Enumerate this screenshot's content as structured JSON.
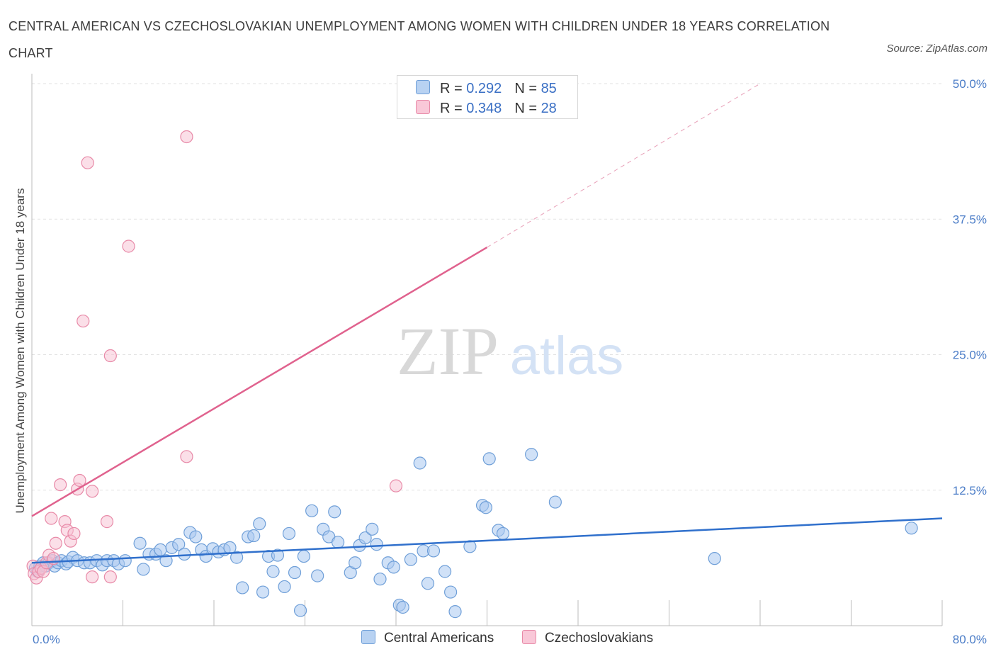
{
  "title": "CENTRAL AMERICAN VS CZECHOSLOVAKIAN UNEMPLOYMENT AMONG WOMEN WITH CHILDREN UNDER 18 YEARS CORRELATION CHART",
  "source": "Source: ZipAtlas.com",
  "watermark": {
    "zip": "ZIP",
    "atlas": "atlas"
  },
  "legend": {
    "r_label": "R =",
    "n_label": "N =",
    "series1": {
      "r": "0.292",
      "n": "85"
    },
    "series2": {
      "r": "0.348",
      "n": "28"
    }
  },
  "colors": {
    "blue_fill": "#aac8f0",
    "blue_stroke": "#6f9fd8",
    "blue_line": "#3070cc",
    "pink_fill": "#f8c0d2",
    "pink_stroke": "#e88aa8",
    "pink_line": "#e0628e",
    "axis_text": "#4a7cc7"
  },
  "chart_data": {
    "type": "scatter",
    "title": "CENTRAL AMERICAN VS CZECHOSLOVAKIAN UNEMPLOYMENT AMONG WOMEN WITH CHILDREN UNDER 18 YEARS CORRELATION CHART",
    "xlabel": "",
    "ylabel": "Unemployment Among Women with Children Under 18 years",
    "xlim": [
      0,
      80
    ],
    "ylim": [
      0,
      50
    ],
    "x_tick_labels": [
      "0.0%",
      "80.0%"
    ],
    "y_ticks": [
      12.5,
      25.0,
      37.5,
      50.0
    ],
    "y_tick_labels": [
      "12.5%",
      "25.0%",
      "37.5%",
      "50.0%"
    ],
    "grid": true,
    "series": [
      {
        "name": "Central Americans",
        "color": "#aac8f0",
        "trend": {
          "x": [
            0,
            80
          ],
          "y": [
            5.8,
            9.9
          ]
        },
        "points": [
          [
            0.3,
            5.3
          ],
          [
            0.5,
            5.0
          ],
          [
            0.7,
            5.5
          ],
          [
            1.0,
            5.8
          ],
          [
            1.2,
            5.5
          ],
          [
            1.5,
            5.8
          ],
          [
            1.8,
            6.0
          ],
          [
            2.0,
            5.5
          ],
          [
            2.3,
            5.8
          ],
          [
            2.6,
            6.0
          ],
          [
            3.0,
            5.7
          ],
          [
            3.2,
            5.9
          ],
          [
            3.6,
            6.3
          ],
          [
            4.0,
            6.0
          ],
          [
            4.6,
            5.8
          ],
          [
            5.1,
            5.8
          ],
          [
            5.7,
            6.0
          ],
          [
            6.2,
            5.6
          ],
          [
            6.6,
            6.0
          ],
          [
            7.2,
            6.0
          ],
          [
            7.6,
            5.7
          ],
          [
            8.2,
            6.0
          ],
          [
            9.5,
            7.6
          ],
          [
            9.8,
            5.2
          ],
          [
            10.3,
            6.6
          ],
          [
            10.9,
            6.6
          ],
          [
            11.3,
            7.0
          ],
          [
            11.8,
            6.0
          ],
          [
            12.3,
            7.2
          ],
          [
            12.9,
            7.5
          ],
          [
            13.4,
            6.6
          ],
          [
            13.9,
            8.6
          ],
          [
            14.4,
            8.2
          ],
          [
            14.9,
            7.0
          ],
          [
            15.3,
            6.4
          ],
          [
            15.9,
            7.1
          ],
          [
            16.4,
            6.8
          ],
          [
            16.9,
            7.0
          ],
          [
            17.4,
            7.2
          ],
          [
            18.0,
            6.3
          ],
          [
            18.5,
            3.5
          ],
          [
            19.0,
            8.2
          ],
          [
            19.5,
            8.3
          ],
          [
            20.0,
            9.4
          ],
          [
            20.3,
            3.1
          ],
          [
            20.8,
            6.4
          ],
          [
            21.2,
            5.0
          ],
          [
            21.6,
            6.5
          ],
          [
            22.2,
            3.6
          ],
          [
            22.6,
            8.5
          ],
          [
            23.1,
            4.9
          ],
          [
            23.6,
            1.4
          ],
          [
            23.9,
            6.4
          ],
          [
            24.6,
            10.6
          ],
          [
            25.1,
            4.6
          ],
          [
            25.6,
            8.9
          ],
          [
            26.1,
            8.2
          ],
          [
            26.6,
            10.5
          ],
          [
            26.9,
            7.7
          ],
          [
            28.0,
            4.9
          ],
          [
            28.4,
            5.8
          ],
          [
            28.8,
            7.4
          ],
          [
            29.3,
            8.1
          ],
          [
            29.9,
            8.9
          ],
          [
            30.3,
            7.5
          ],
          [
            30.6,
            4.3
          ],
          [
            31.3,
            5.8
          ],
          [
            31.8,
            5.4
          ],
          [
            32.3,
            1.9
          ],
          [
            32.6,
            1.7
          ],
          [
            33.3,
            6.1
          ],
          [
            34.1,
            15.0
          ],
          [
            34.4,
            6.9
          ],
          [
            34.8,
            3.9
          ],
          [
            35.3,
            6.9
          ],
          [
            36.3,
            5.0
          ],
          [
            36.8,
            3.1
          ],
          [
            37.2,
            1.3
          ],
          [
            38.5,
            7.3
          ],
          [
            39.6,
            11.1
          ],
          [
            39.9,
            10.9
          ],
          [
            40.2,
            15.4
          ],
          [
            41.0,
            8.8
          ],
          [
            41.4,
            8.5
          ],
          [
            43.9,
            15.8
          ],
          [
            46.0,
            11.4
          ],
          [
            60.0,
            6.2
          ],
          [
            77.3,
            9.0
          ]
        ]
      },
      {
        "name": "Czechoslovakians",
        "color": "#f8c0d2",
        "trend": {
          "x": [
            0,
            40
          ],
          "y": [
            10.1,
            34.9
          ]
        },
        "trend_extension": {
          "x": [
            40,
            64
          ],
          "y": [
            34.9,
            50.0
          ]
        },
        "points": [
          [
            0.1,
            5.5
          ],
          [
            0.2,
            4.8
          ],
          [
            0.4,
            4.4
          ],
          [
            0.6,
            5.0
          ],
          [
            0.8,
            5.3
          ],
          [
            1.0,
            5.0
          ],
          [
            1.3,
            5.8
          ],
          [
            1.5,
            6.5
          ],
          [
            1.7,
            9.9
          ],
          [
            1.9,
            6.2
          ],
          [
            2.1,
            7.6
          ],
          [
            2.5,
            13.0
          ],
          [
            2.9,
            9.6
          ],
          [
            3.1,
            8.8
          ],
          [
            3.4,
            7.8
          ],
          [
            3.7,
            8.5
          ],
          [
            4.0,
            12.6
          ],
          [
            4.2,
            13.4
          ],
          [
            4.5,
            28.1
          ],
          [
            4.9,
            42.7
          ],
          [
            5.3,
            12.4
          ],
          [
            5.3,
            4.5
          ],
          [
            6.6,
            9.6
          ],
          [
            6.9,
            4.5
          ],
          [
            6.9,
            24.9
          ],
          [
            8.5,
            35.0
          ],
          [
            13.6,
            45.1
          ],
          [
            13.6,
            15.6
          ],
          [
            32.0,
            12.9
          ]
        ]
      }
    ]
  },
  "bottom_legend": {
    "series1": "Central Americans",
    "series2": "Czechoslovakians"
  }
}
